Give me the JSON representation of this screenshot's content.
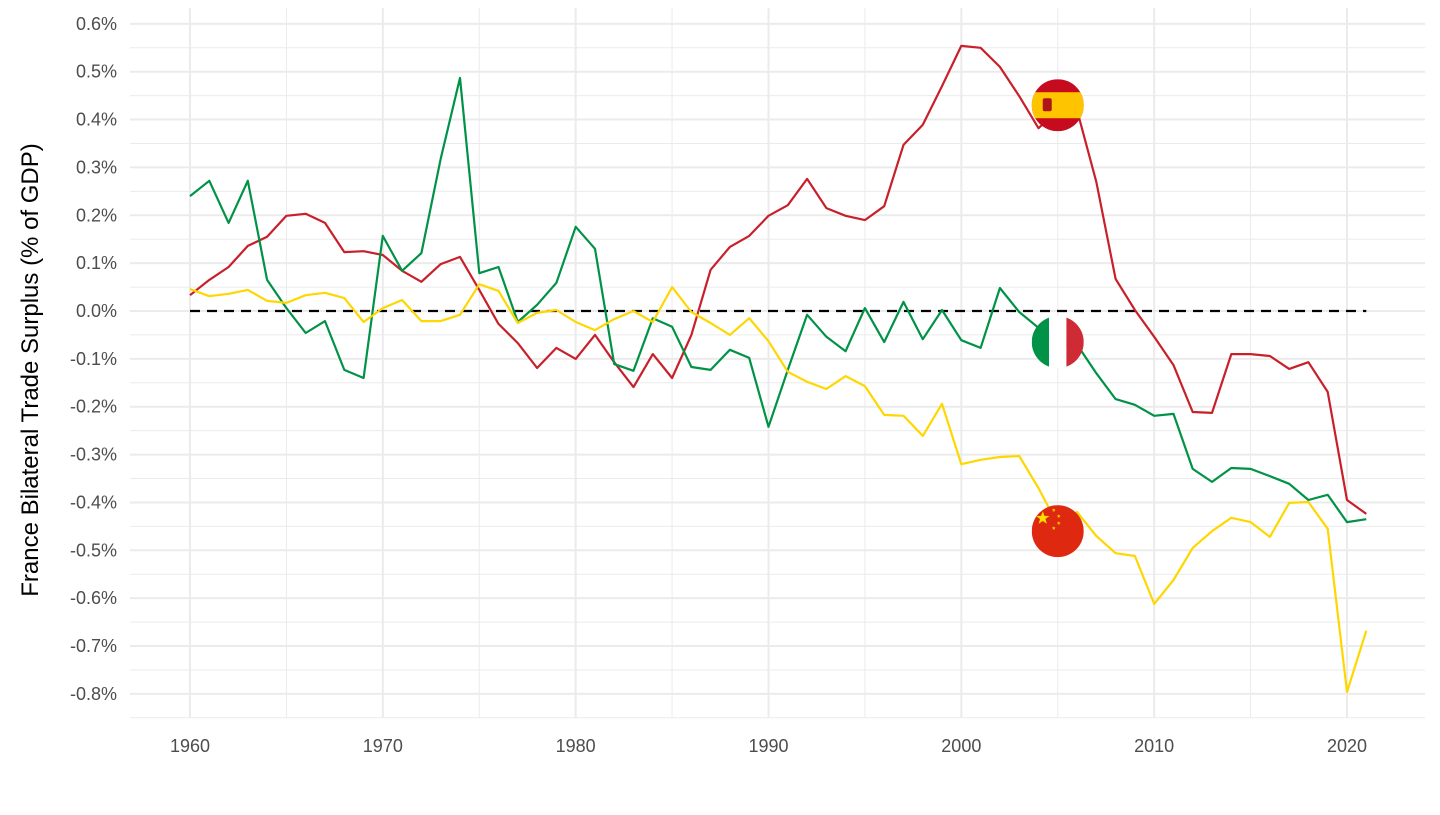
{
  "chart_data": {
    "type": "line",
    "title": "",
    "xlabel": "",
    "ylabel": "France Bilateral Trade Surplus (% of GDP)",
    "xlim": [
      1957,
      2024
    ],
    "ylim": [
      -0.85,
      0.62
    ],
    "x_ticks": [
      1960,
      1970,
      1980,
      1990,
      2000,
      2010,
      2020
    ],
    "x_tick_labels": [
      "1960",
      "1970",
      "1980",
      "1990",
      "2000",
      "2010",
      "2020"
    ],
    "y_ticks": [
      0.6,
      0.5,
      0.4,
      0.3,
      0.2,
      0.1,
      0.0,
      -0.1,
      -0.2,
      -0.3,
      -0.4,
      -0.5,
      -0.6,
      -0.7,
      -0.8
    ],
    "y_tick_labels": [
      "0.6%",
      "0.5%",
      "0.4%",
      "0.3%",
      "0.2%",
      "0.1%",
      "0.0%",
      "-0.1%",
      "-0.2%",
      "-0.3%",
      "-0.4%",
      "-0.5%",
      "-0.6%",
      "-0.7%",
      "-0.8%"
    ],
    "grid": true,
    "reference_line": {
      "y": 0,
      "style": "dashed",
      "color": "#000000"
    },
    "x_start": 1960,
    "series": [
      {
        "id": "spain",
        "flag": "spain-flag",
        "color": "#C8202A",
        "flag_x": 2005,
        "flag_y": 0.43,
        "values": [
          0.033,
          0.065,
          0.092,
          0.136,
          0.155,
          0.199,
          0.203,
          0.184,
          0.123,
          0.125,
          0.117,
          0.084,
          0.061,
          0.098,
          0.113,
          0.044,
          -0.027,
          -0.067,
          -0.119,
          -0.077,
          -0.1,
          -0.05,
          -0.107,
          -0.159,
          -0.09,
          -0.14,
          -0.05,
          0.086,
          0.134,
          0.157,
          0.199,
          0.221,
          0.276,
          0.215,
          0.199,
          0.19,
          0.219,
          0.347,
          0.389,
          0.47,
          0.554,
          0.55,
          0.51,
          0.449,
          0.382,
          0.42,
          0.42,
          0.27,
          0.067,
          0.002,
          -0.054,
          -0.113,
          -0.211,
          -0.213,
          -0.09,
          -0.09,
          -0.094,
          -0.121,
          -0.107,
          -0.169,
          -0.395,
          -0.424
        ]
      },
      {
        "id": "italy",
        "flag": "italy-flag",
        "color": "#009246",
        "flag_x": 2005,
        "flag_y": -0.065,
        "values": [
          0.24,
          0.272,
          0.184,
          0.272,
          0.065,
          0.006,
          -0.046,
          -0.021,
          -0.123,
          -0.14,
          0.157,
          0.084,
          0.121,
          0.318,
          0.487,
          0.079,
          0.092,
          -0.023,
          0.013,
          0.059,
          0.176,
          0.13,
          -0.111,
          -0.125,
          -0.015,
          -0.033,
          -0.117,
          -0.123,
          -0.081,
          -0.098,
          -0.242,
          -0.123,
          -0.008,
          -0.054,
          -0.084,
          0.006,
          -0.065,
          0.019,
          -0.059,
          0.002,
          -0.061,
          -0.077,
          0.048,
          -0.002,
          -0.035,
          -0.07,
          -0.07,
          -0.13,
          -0.184,
          -0.196,
          -0.219,
          -0.215,
          -0.33,
          -0.357,
          -0.328,
          -0.33,
          -0.345,
          -0.361,
          -0.395,
          -0.384,
          -0.441,
          -0.435
        ]
      },
      {
        "id": "china",
        "flag": "china-flag",
        "color": "#FFD700",
        "flag_x": 2005,
        "flag_y": -0.46,
        "values": [
          0.046,
          0.031,
          0.036,
          0.044,
          0.021,
          0.017,
          0.033,
          0.038,
          0.027,
          -0.023,
          0.006,
          0.023,
          -0.021,
          -0.021,
          -0.008,
          0.056,
          0.042,
          -0.025,
          -0.004,
          0.002,
          -0.023,
          -0.04,
          -0.017,
          0.0,
          -0.023,
          0.05,
          -0.002,
          -0.025,
          -0.05,
          -0.015,
          -0.063,
          -0.127,
          -0.148,
          -0.163,
          -0.136,
          -0.157,
          -0.217,
          -0.219,
          -0.261,
          -0.194,
          -0.32,
          -0.311,
          -0.305,
          -0.303,
          -0.37,
          -0.447,
          -0.42,
          -0.47,
          -0.506,
          -0.512,
          -0.612,
          -0.562,
          -0.495,
          -0.46,
          -0.432,
          -0.441,
          -0.472,
          -0.401,
          -0.399,
          -0.455,
          -0.796,
          -0.668
        ]
      }
    ]
  }
}
